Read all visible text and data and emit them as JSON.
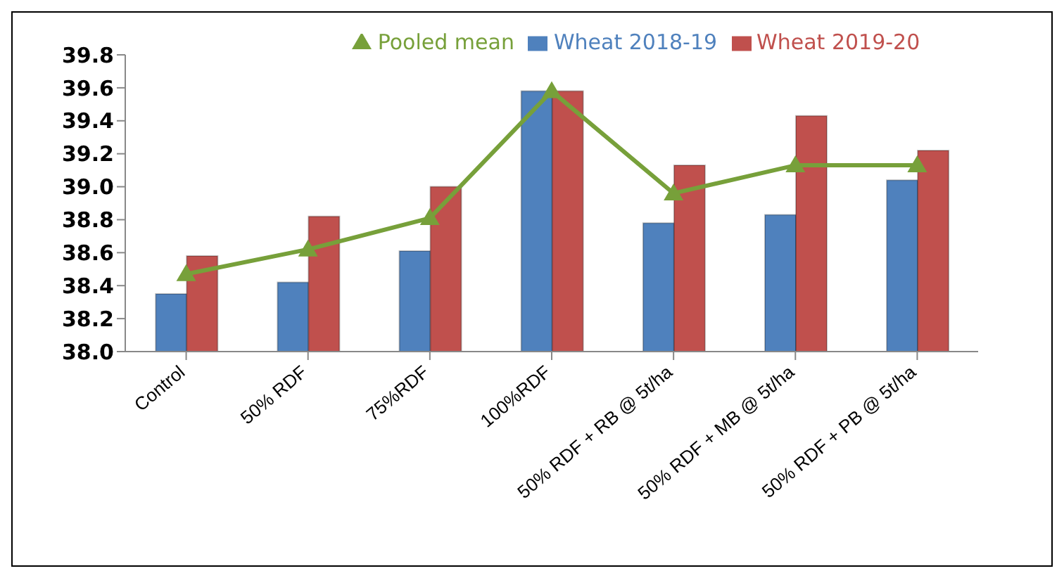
{
  "chart_data": {
    "type": "bar",
    "categories": [
      "Control",
      "50% RDF",
      "75%RDF",
      "100%RDF",
      "50% RDF + RB @ 5t/ha",
      "50% RDF + MB @ 5t/ha",
      "50% RDF + PB @ 5t/ha"
    ],
    "series": [
      {
        "name": "Wheat  2018-19",
        "color": "#4f81bd",
        "values": [
          38.35,
          38.42,
          38.61,
          39.58,
          38.78,
          38.83,
          39.04
        ]
      },
      {
        "name": "Wheat  2019-20",
        "color": "#c0504d",
        "values": [
          38.58,
          38.82,
          39.0,
          39.58,
          39.13,
          39.43,
          39.22
        ]
      },
      {
        "name": "Pooled mean",
        "type": "line",
        "color": "#77a03a",
        "marker": "triangle",
        "values": [
          38.47,
          38.62,
          38.81,
          39.58,
          38.96,
          39.13,
          39.13
        ]
      }
    ],
    "ylim": [
      38.0,
      39.8
    ],
    "yticks": [
      {
        "value": 38.0,
        "label": "38.0"
      },
      {
        "value": 38.2,
        "label": "38.2"
      },
      {
        "value": 38.4,
        "label": "38.4"
      },
      {
        "value": 38.6,
        "label": "38.6"
      },
      {
        "value": 38.8,
        "label": "38.8"
      },
      {
        "value": 39.0,
        "label": "39.0"
      },
      {
        "value": 39.2,
        "label": "39.2"
      },
      {
        "value": 39.4,
        "label": "39.4"
      },
      {
        "value": 39.6,
        "label": "39.6"
      },
      {
        "value": 39.8,
        "label": "39.8"
      }
    ],
    "grid": false,
    "legend": "top"
  }
}
